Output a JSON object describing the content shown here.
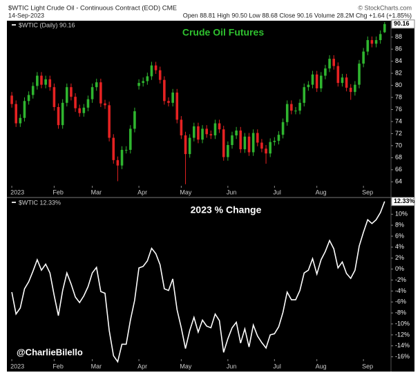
{
  "header": {
    "title": "$WTIC Light Crude Oil - Continuous Contract (EOD) CME",
    "source": "© StockCharts.com",
    "date": "14-Sep-2023",
    "quote": "Open 88.81 High 90.50 Low 88.68 Close 90.16 Volume 28.2M Chg +1.64 (+1.85%)"
  },
  "watermark": "@CharlieBilello",
  "chart_data": [
    {
      "type": "candlestick",
      "title": "Crude Oil Futures",
      "legend": "$WTIC (Daily) 90.16",
      "last_value_label": "90.16",
      "up_color": "#2fb52f",
      "down_color": "#e52222",
      "series": {
        "open": [
          78.3,
          76.9,
          73.7,
          74.6,
          77.4,
          78.4,
          79.9,
          81.6,
          80.1,
          81.0,
          79.7,
          76.4,
          73.4,
          77.1,
          79.7,
          78.1,
          76.2,
          75.4,
          76.3,
          77.7,
          79.7,
          80.5,
          77.0,
          76.7,
          71.3,
          67.6,
          66.7,
          69.3,
          69.3,
          72.8,
          79.9,
          80.4,
          80.7,
          81.5,
          83.3,
          82.5,
          80.9,
          77.4,
          77.1,
          78.8,
          74.3,
          71.7,
          68.6,
          71.3,
          73.2,
          71.0,
          72.8,
          71.9,
          71.7,
          73.7,
          72.7,
          68.1,
          70.1,
          71.7,
          72.5,
          69.4,
          71.5,
          68.9,
          72.1,
          70.5,
          69.5,
          68.7,
          70.6,
          70.8,
          71.8,
          73.9,
          76.9,
          75.8,
          75.8,
          77.1,
          79.7,
          80.1,
          81.8,
          79.5,
          81.6,
          82.8,
          84.4,
          83.2,
          80.4,
          81.3,
          79.6,
          78.9,
          80.1,
          83.6,
          85.6,
          87.5,
          86.9,
          87.5,
          88.81
        ],
        "high": [
          78.9,
          77.5,
          75.2,
          78.0,
          79.0,
          80.5,
          82.2,
          82.2,
          81.6,
          81.6,
          80.3,
          77.0,
          77.7,
          80.3,
          80.3,
          78.7,
          76.8,
          76.9,
          78.3,
          80.3,
          81.1,
          81.1,
          77.6,
          77.3,
          71.9,
          68.2,
          69.9,
          69.9,
          73.4,
          76.3,
          81.0,
          81.3,
          82.1,
          83.9,
          83.9,
          83.1,
          81.5,
          78.0,
          79.4,
          79.4,
          74.9,
          72.3,
          71.9,
          73.8,
          73.8,
          73.4,
          73.4,
          72.5,
          74.3,
          74.3,
          73.3,
          70.7,
          72.3,
          73.1,
          73.1,
          72.1,
          72.1,
          72.7,
          72.7,
          71.1,
          70.1,
          71.2,
          71.4,
          72.4,
          74.5,
          77.5,
          77.5,
          76.4,
          77.7,
          80.3,
          80.7,
          82.4,
          82.4,
          82.2,
          83.4,
          85.0,
          85.0,
          83.8,
          81.9,
          81.9,
          80.2,
          80.7,
          84.2,
          86.2,
          88.1,
          88.1,
          88.1,
          89.1,
          90.5
        ],
        "low": [
          76.3,
          73.1,
          73.1,
          74.0,
          76.8,
          77.8,
          79.3,
          79.5,
          79.5,
          79.1,
          75.8,
          72.8,
          72.8,
          76.5,
          77.5,
          75.6,
          74.8,
          74.8,
          75.7,
          77.1,
          79.1,
          76.4,
          76.1,
          70.7,
          67.0,
          64.1,
          66.1,
          68.7,
          68.7,
          72.2,
          79.3,
          79.8,
          80.1,
          80.9,
          81.9,
          80.3,
          76.8,
          76.5,
          76.5,
          73.7,
          71.1,
          63.6,
          68.0,
          70.7,
          70.4,
          70.4,
          71.3,
          71.1,
          71.1,
          72.1,
          67.5,
          67.5,
          69.5,
          71.1,
          68.8,
          68.8,
          68.3,
          68.3,
          69.9,
          68.9,
          67.0,
          68.1,
          70.0,
          70.2,
          71.2,
          73.3,
          75.2,
          75.2,
          75.2,
          76.5,
          79.1,
          79.5,
          78.9,
          78.9,
          81.0,
          82.2,
          82.6,
          79.8,
          79.8,
          79.0,
          77.6,
          78.3,
          79.5,
          83.0,
          85.0,
          86.3,
          86.3,
          86.9,
          88.68
        ],
        "close": [
          76.9,
          73.7,
          74.6,
          77.4,
          78.4,
          79.9,
          81.6,
          80.1,
          81.0,
          79.7,
          76.4,
          73.4,
          77.1,
          79.7,
          78.1,
          76.2,
          75.4,
          76.3,
          77.7,
          79.7,
          80.5,
          77.0,
          76.7,
          71.3,
          67.6,
          66.7,
          69.3,
          69.3,
          72.8,
          75.7,
          80.4,
          80.7,
          81.5,
          83.3,
          82.5,
          80.9,
          77.4,
          77.1,
          78.8,
          74.3,
          71.7,
          68.6,
          71.3,
          73.2,
          71.0,
          72.8,
          71.9,
          71.7,
          73.7,
          72.7,
          68.1,
          70.1,
          71.7,
          72.5,
          69.4,
          71.5,
          68.9,
          72.1,
          70.5,
          69.5,
          68.7,
          70.6,
          70.8,
          71.8,
          73.9,
          76.9,
          75.8,
          75.8,
          77.1,
          79.7,
          80.1,
          81.8,
          79.5,
          81.6,
          82.8,
          84.4,
          83.2,
          80.4,
          81.3,
          79.6,
          78.9,
          80.1,
          83.6,
          85.6,
          87.5,
          86.9,
          87.5,
          88.5,
          90.16
        ]
      },
      "xlim": [
        -0.5,
        89.5
      ],
      "xticks": [
        {
          "value": 0,
          "label": "2023"
        },
        {
          "value": 10,
          "label": "Feb"
        },
        {
          "value": 19,
          "label": "Mar"
        },
        {
          "value": 30,
          "label": "Apr"
        },
        {
          "value": 40,
          "label": "May"
        },
        {
          "value": 51,
          "label": "Jun"
        },
        {
          "value": 62,
          "label": "Jul"
        },
        {
          "value": 72,
          "label": "Aug"
        },
        {
          "value": 83,
          "label": "Sep"
        }
      ],
      "ylim": [
        63,
        90.6
      ],
      "yticks": [
        64,
        66,
        68,
        70,
        72,
        74,
        76,
        78,
        80,
        82,
        84,
        86,
        88
      ]
    },
    {
      "type": "line",
      "title": "2023 % Change",
      "legend": "$WTIC 12.33%",
      "last_value_label": "12.33%",
      "color": "#ffffff",
      "values": [
        -4.2,
        -8.2,
        -7.1,
        -3.6,
        -2.3,
        -0.4,
        1.7,
        -0.2,
        0.9,
        -0.7,
        -4.8,
        -8.5,
        -3.9,
        -0.7,
        -2.7,
        -5.1,
        -6.1,
        -4.9,
        -3.2,
        -0.7,
        0.3,
        -4.1,
        -4.4,
        -11.2,
        -15.8,
        -16.9,
        -13.7,
        -13.7,
        -9.3,
        -5.7,
        0.2,
        0.5,
        1.5,
        3.8,
        2.8,
        0.8,
        -3.6,
        -3.9,
        -1.8,
        -7.4,
        -10.7,
        -14.5,
        -11.2,
        -8.8,
        -11.5,
        -9.3,
        -10.4,
        -10.7,
        -8.2,
        -9.4,
        -15.2,
        -12.7,
        -10.7,
        -9.7,
        -13.5,
        -10.9,
        -14.2,
        -10.2,
        -12.2,
        -13.4,
        -14.4,
        -12.0,
        -11.8,
        -10.5,
        -7.9,
        -4.2,
        -5.6,
        -5.6,
        -3.9,
        -0.7,
        -0.2,
        1.9,
        -0.9,
        1.7,
        3.2,
        5.2,
        3.7,
        0.2,
        1.3,
        -0.8,
        -1.7,
        -0.2,
        4.2,
        6.7,
        9.0,
        8.3,
        9.0,
        10.3,
        12.33
      ],
      "xlim": [
        -0.5,
        89.5
      ],
      "xticks": [
        {
          "value": 0,
          "label": "2023"
        },
        {
          "value": 10,
          "label": "Feb"
        },
        {
          "value": 19,
          "label": "Mar"
        },
        {
          "value": 30,
          "label": "Apr"
        },
        {
          "value": 40,
          "label": "May"
        },
        {
          "value": 51,
          "label": "Jun"
        },
        {
          "value": 62,
          "label": "Jul"
        },
        {
          "value": 72,
          "label": "Aug"
        },
        {
          "value": 83,
          "label": "Sep"
        }
      ],
      "ylim": [
        -16.8,
        12.8
      ],
      "yticks": [
        {
          "value": -16,
          "label": "-16%"
        },
        {
          "value": -14,
          "label": "-14%"
        },
        {
          "value": -12,
          "label": "-12%"
        },
        {
          "value": -10,
          "label": "-10%"
        },
        {
          "value": -8,
          "label": "-8%"
        },
        {
          "value": -6,
          "label": "-6%"
        },
        {
          "value": -4,
          "label": "-4%"
        },
        {
          "value": -2,
          "label": "-2%"
        },
        {
          "value": 0,
          "label": "0%"
        },
        {
          "value": 2,
          "label": "2%"
        },
        {
          "value": 4,
          "label": "4%"
        },
        {
          "value": 6,
          "label": "6%"
        },
        {
          "value": 8,
          "label": "8%"
        },
        {
          "value": 10,
          "label": "10%"
        }
      ]
    }
  ]
}
